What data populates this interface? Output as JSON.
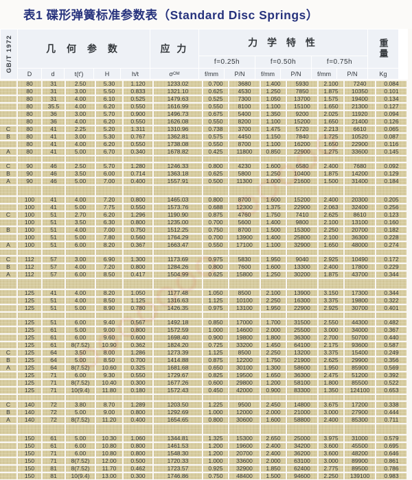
{
  "title": "表1 碟形弹簧标准参数表（Standard Disc Springs）",
  "standard_label": "GB/T 1972",
  "colors": {
    "title_navy": "#27337d",
    "header_bg": "#eef1f6",
    "cell_tan": "#d7cc9f",
    "separator": "#e8e1c6",
    "watermark_red": "#d6392f"
  },
  "header": {
    "geometry": "几 何 参 数",
    "stress": "应 力",
    "mechanical": "力 学 特 性",
    "weight": "重量",
    "deflections": [
      "f=0.25h",
      "f=0.50h",
      "f=0.75h"
    ],
    "sigma_main": "σ",
    "sigma_sub": "OM",
    "col_labels": [
      "D",
      "d",
      "t(t')",
      "H",
      "h/t",
      "σOM",
      "f/mm",
      "P/N",
      "f/mm",
      "P/N",
      "f/mm",
      "P/N",
      "Kg"
    ]
  },
  "table": {
    "groups": [
      {
        "gap_before": "none",
        "rows": [
          [
            "",
            "80",
            "31",
            "2.50",
            "5.30",
            "1.120",
            "1233.02",
            "0.700",
            "3680",
            "1.400",
            "5930",
            "2.100",
            "7240",
            "0.084"
          ],
          [
            "",
            "80",
            "31",
            "3.00",
            "5.50",
            "0.833",
            "1321.10",
            "0.625",
            "4530",
            "1.250",
            "7850",
            "1.875",
            "10350",
            "0.101"
          ],
          [
            "",
            "80",
            "31",
            "4.00",
            "6.10",
            "0.525",
            "1479.63",
            "0.525",
            "7300",
            "1.050",
            "13700",
            "1.575",
            "19400",
            "0.134"
          ],
          [
            "",
            "80",
            "35.5",
            "4.00",
            "6.20",
            "0.550",
            "1616.99",
            "0.550",
            "8100",
            "1.100",
            "15100",
            "1.650",
            "21300",
            "0.127"
          ],
          [
            "",
            "80",
            "36",
            "3.00",
            "5.70",
            "0.900",
            "1496.73",
            "0.675",
            "5400",
            "1.350",
            "9200",
            "2.025",
            "11920",
            "0.094"
          ],
          [
            "",
            "80",
            "36",
            "4.00",
            "6.20",
            "0.550",
            "1626.08",
            "0.550",
            "8200",
            "1.100",
            "15200",
            "1.650",
            "21400",
            "0.126"
          ],
          [
            "C",
            "80",
            "41",
            "2.25",
            "5.20",
            "1.311",
            "1310.96",
            "0.738",
            "3700",
            "1.475",
            "5720",
            "2.213",
            "6610",
            "0.065"
          ],
          [
            "B",
            "80",
            "41",
            "3.00",
            "5.30",
            "0.767",
            "1362.81",
            "0.575",
            "4450",
            "1.150",
            "7840",
            "1.725",
            "10520",
            "0.087"
          ],
          [
            "",
            "80",
            "41",
            "4.00",
            "6.20",
            "0.550",
            "1738.08",
            "0.550",
            "8700",
            "1.100",
            "16200",
            "1.650",
            "22900",
            "0.116"
          ],
          [
            "A",
            "80",
            "41",
            "5.00",
            "6.70",
            "0.340",
            "1678.82",
            "0.425",
            "11800",
            "0.850",
            "22900",
            "1.275",
            "33600",
            "0.145"
          ]
        ]
      },
      {
        "gap_before": "small",
        "rows": [
          [
            "C",
            "90",
            "46",
            "2.50",
            "5.70",
            "1.280",
            "1246.33",
            "0.800",
            "4230",
            "1.600",
            "6580",
            "2.400",
            "7680",
            "0.092"
          ],
          [
            "B",
            "90",
            "46",
            "3.50",
            "6.00",
            "0.714",
            "1363.18",
            "0.625",
            "5800",
            "1.250",
            "10400",
            "1.875",
            "14200",
            "0.129"
          ],
          [
            "A",
            "90",
            "46",
            "5.00",
            "7.00",
            "0.400",
            "1557.91",
            "0.500",
            "11300",
            "1.000",
            "21600",
            "1.500",
            "31400",
            "0.184"
          ]
        ]
      },
      {
        "gap_before": "large",
        "rows": [
          [
            "",
            "100",
            "41",
            "4.00",
            "7.20",
            "0.800",
            "1465.03",
            "0.800",
            "8700",
            "1.600",
            "15200",
            "2.400",
            "20300",
            "0.205"
          ],
          [
            "",
            "100",
            "41",
            "5.00",
            "7.75",
            "0.550",
            "1573.76",
            "0.688",
            "12300",
            "1.375",
            "22900",
            "2.063",
            "32400",
            "0.256"
          ],
          [
            "C",
            "100",
            "51",
            "2.70",
            "6.20",
            "1.296",
            "1190.90",
            "0.875",
            "4760",
            "1.750",
            "7410",
            "2.625",
            "8610",
            "0.123"
          ],
          [
            "",
            "100",
            "51",
            "3.50",
            "6.30",
            "0.800",
            "1235.00",
            "0.700",
            "5600",
            "1.400",
            "9800",
            "2.100",
            "13100",
            "0.160"
          ],
          [
            "B",
            "100",
            "51",
            "4.00",
            "7.00",
            "0.750",
            "1512.25",
            "0.750",
            "8700",
            "1.500",
            "15300",
            "2.250",
            "20700",
            "0.182"
          ],
          [
            "",
            "100",
            "51",
            "5.00",
            "7.80",
            "0.560",
            "1764.29",
            "0.700",
            "13900",
            "1.400",
            "25800",
            "2.100",
            "36300",
            "0.228"
          ],
          [
            "A",
            "100",
            "51",
            "6.00",
            "8.20",
            "0.367",
            "1663.47",
            "0.550",
            "17100",
            "1.100",
            "32900",
            "1.650",
            "48000",
            "0.274"
          ]
        ]
      },
      {
        "gap_before": "small",
        "rows": [
          [
            "C",
            "112",
            "57",
            "3.00",
            "6.90",
            "1.300",
            "1173.69",
            "0.975",
            "5830",
            "1.950",
            "9040",
            "2.925",
            "10490",
            "0.172"
          ],
          [
            "B",
            "112",
            "57",
            "4.00",
            "7.20",
            "0.800",
            "1284.26",
            "0.800",
            "7600",
            "1.600",
            "13300",
            "2.400",
            "17800",
            "0.229"
          ],
          [
            "A",
            "112",
            "57",
            "6.00",
            "8.50",
            "0.417",
            "1504.99",
            "0.625",
            "15800",
            "1.250",
            "30200",
            "1.875",
            "43700",
            "0.344"
          ]
        ]
      },
      {
        "gap_before": "large",
        "rows": [
          [
            "",
            "125",
            "41",
            "4.00",
            "8.20",
            "1.050",
            "1177.48",
            "1.050",
            "8500",
            "2.100",
            "13900",
            "3.150",
            "17300",
            "0.344"
          ],
          [
            "",
            "125",
            "51",
            "4.00",
            "8.50",
            "1.125",
            "1316.63",
            "1.125",
            "10100",
            "2.250",
            "16300",
            "3.375",
            "19800",
            "0.322"
          ],
          [
            "",
            "125",
            "51",
            "5.00",
            "8.90",
            "0.780",
            "1426.35",
            "0.975",
            "13100",
            "1.950",
            "22900",
            "2.925",
            "30700",
            "0.401"
          ]
        ]
      },
      {
        "gap_before": "small",
        "rows": [
          [
            "",
            "125",
            "51",
            "6.00",
            "9.40",
            "0.567",
            "1492.18",
            "0.850",
            "17000",
            "1.700",
            "31500",
            "2.550",
            "44300",
            "0.482"
          ],
          [
            "",
            "125",
            "61",
            "5.00",
            "9.00",
            "0.800",
            "1572.59",
            "1.000",
            "14600",
            "2.000",
            "25500",
            "3.000",
            "34000",
            "0.367"
          ],
          [
            "",
            "125",
            "61",
            "6.00",
            "9.60",
            "0.600",
            "1698.40",
            "0.900",
            "19800",
            "1.800",
            "36300",
            "2.700",
            "50700",
            "0.440"
          ],
          [
            "",
            "125",
            "61",
            "8(7.52)",
            "10.90",
            "0.362",
            "1824.20",
            "0.725",
            "33200",
            "1.450",
            "64100",
            "2.175",
            "93600",
            "0.587"
          ],
          [
            "C",
            "125",
            "64",
            "3.50",
            "8.00",
            "1.286",
            "1273.39",
            "1.125",
            "8500",
            "2.250",
            "13200",
            "3.375",
            "15400",
            "0.249"
          ],
          [
            "B",
            "125",
            "64",
            "5.00",
            "8.50",
            "0.700",
            "1414.88",
            "0.875",
            "12200",
            "1.750",
            "21900",
            "2.625",
            "29900",
            "0.356"
          ],
          [
            "A",
            "125",
            "64",
            "8(7.52)",
            "10.60",
            "0.325",
            "1681.68",
            "0.650",
            "30100",
            "1.300",
            "58600",
            "1.950",
            "85900",
            "0.569"
          ],
          [
            "",
            "125",
            "71",
            "6.00",
            "9.30",
            "0.550",
            "1729.67",
            "0.825",
            "19500",
            "1.650",
            "36300",
            "2.475",
            "51200",
            "0.392"
          ],
          [
            "",
            "125",
            "71",
            "8(7.52)",
            "10.40",
            "0.300",
            "1677.26",
            "0.600",
            "29800",
            "1.200",
            "58100",
            "1.800",
            "85500",
            "0.522"
          ],
          [
            "",
            "125",
            "71",
            "10(9.4)",
            "11.80",
            "0.180",
            "1572.43",
            "0.450",
            "42000",
            "0.900",
            "83300",
            "1.350",
            "124100",
            "0.653"
          ]
        ]
      },
      {
        "gap_before": "small",
        "rows": [
          [
            "C",
            "140",
            "72",
            "3.80",
            "8.70",
            "1.289",
            "1203.50",
            "1.225",
            "9500",
            "2.450",
            "14800",
            "3.675",
            "17200",
            "0.338"
          ],
          [
            "B",
            "140",
            "72",
            "5.00",
            "9.00",
            "0.800",
            "1292.69",
            "1.000",
            "12000",
            "2.000",
            "21000",
            "3.000",
            "27900",
            "0.444"
          ],
          [
            "A",
            "140",
            "72",
            "8(7.52)",
            "11.20",
            "0.400",
            "1654.65",
            "0.800",
            "30600",
            "1.600",
            "58800",
            "2.400",
            "85300",
            "0.711"
          ]
        ]
      },
      {
        "gap_before": "large",
        "rows": [
          [
            "",
            "150",
            "61",
            "5.00",
            "10.30",
            "1.060",
            "1344.81",
            "1.325",
            "15300",
            "2.650",
            "25000",
            "3.975",
            "31000",
            "0.579"
          ],
          [
            "",
            "150",
            "61",
            "6.00",
            "10.80",
            "0.800",
            "1461.53",
            "1.200",
            "19600",
            "2.400",
            "34200",
            "3.600",
            "45500",
            "0.695"
          ],
          [
            "",
            "150",
            "71",
            "6.00",
            "10.80",
            "0.800",
            "1548.30",
            "1.200",
            "20700",
            "2.400",
            "36200",
            "3.600",
            "48200",
            "0.646"
          ],
          [
            "",
            "150",
            "71",
            "8(7.52)",
            "12.00",
            "0.500",
            "1720.33",
            "1.000",
            "33600",
            "2.000",
            "63100",
            "3.000",
            "89900",
            "0.861"
          ],
          [
            "",
            "150",
            "81",
            "8(7.52)",
            "11.70",
            "0.462",
            "1723.57",
            "0.925",
            "32900",
            "1.850",
            "62400",
            "2.775",
            "89500",
            "0.786"
          ],
          [
            "",
            "150",
            "81",
            "10(9.4)",
            "13.00",
            "0.300",
            "1746.86",
            "0.750",
            "48400",
            "1.500",
            "94600",
            "2.250",
            "139100",
            "0.983"
          ]
        ]
      }
    ]
  }
}
